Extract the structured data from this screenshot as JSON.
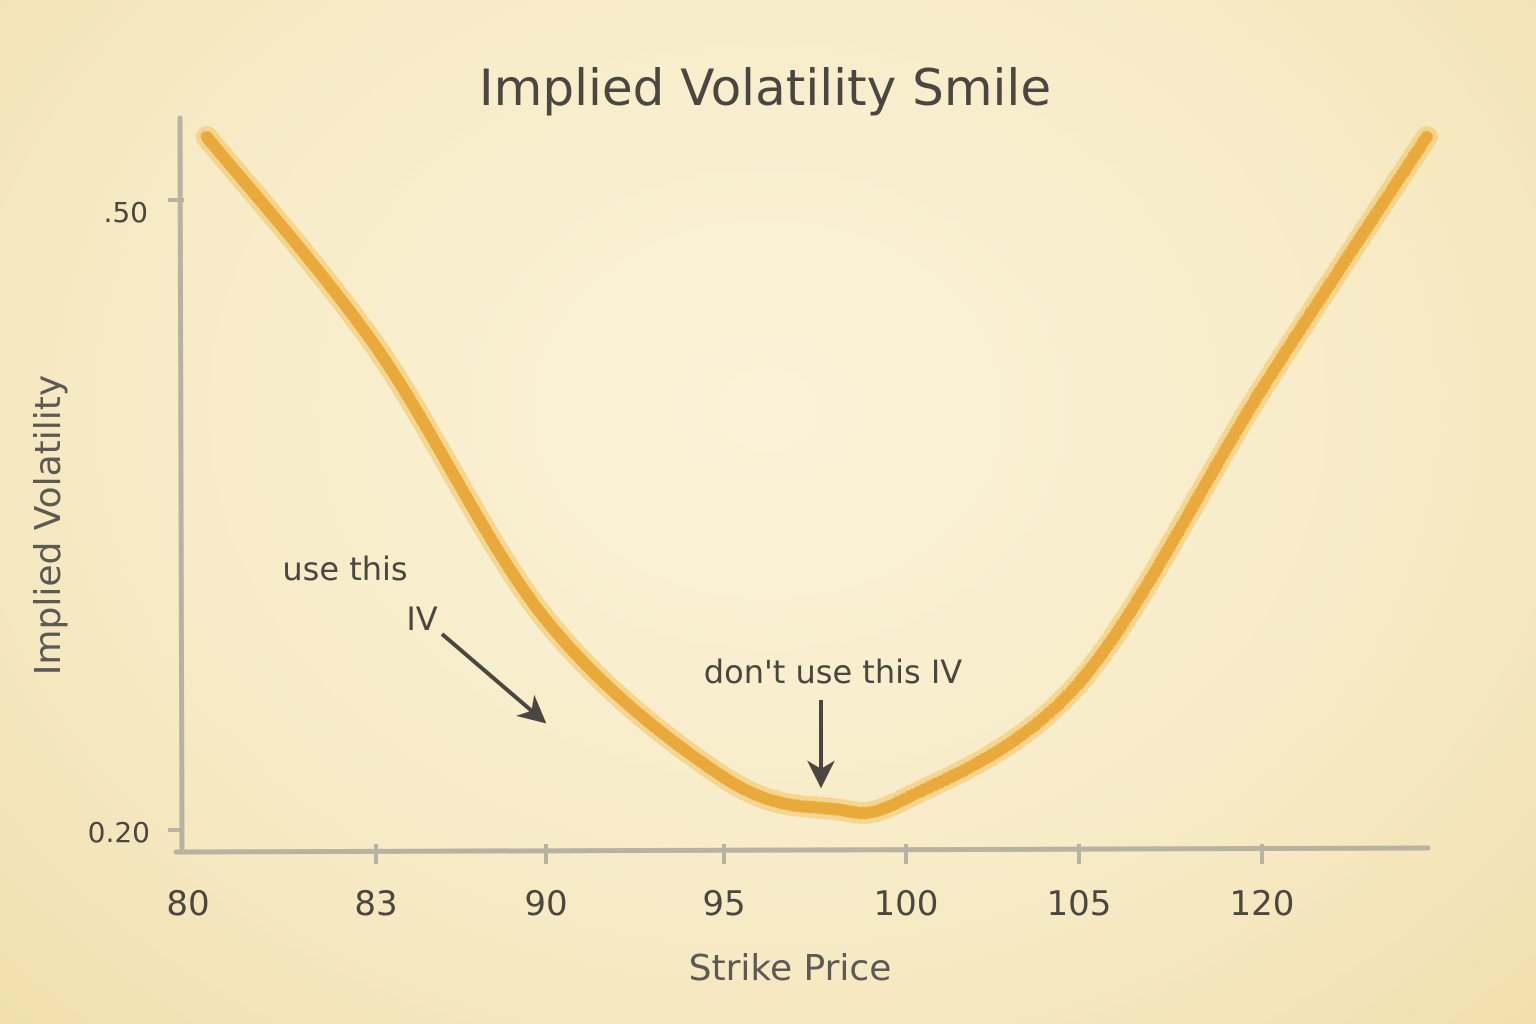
{
  "chart_data": {
    "type": "line",
    "title": "Implied Volatility Smile",
    "xlabel": "Strike Price",
    "ylabel": "Implied Volatility",
    "x_tick_labels": [
      "80",
      "83",
      "90",
      "95",
      "100",
      "105",
      "120"
    ],
    "y_tick_labels": [
      ".50",
      "0.20"
    ],
    "series": [
      {
        "name": "Implied Volatility",
        "color": "#e9a93a",
        "x_tick_index": [
          0.1,
          1.0,
          2.0,
          3.0,
          3.6,
          4.0,
          5.0,
          6.0,
          6.9
        ],
        "values": [
          0.53,
          0.43,
          0.3,
          0.225,
          0.21,
          0.215,
          0.27,
          0.41,
          0.53
        ]
      }
    ],
    "grid": false,
    "annotations": [
      {
        "line1": "use this",
        "line2": "IV",
        "points_to": "curve near strike 90"
      },
      {
        "text": "don't use this IV",
        "points_to": "curve minimum near strike 98"
      }
    ]
  }
}
